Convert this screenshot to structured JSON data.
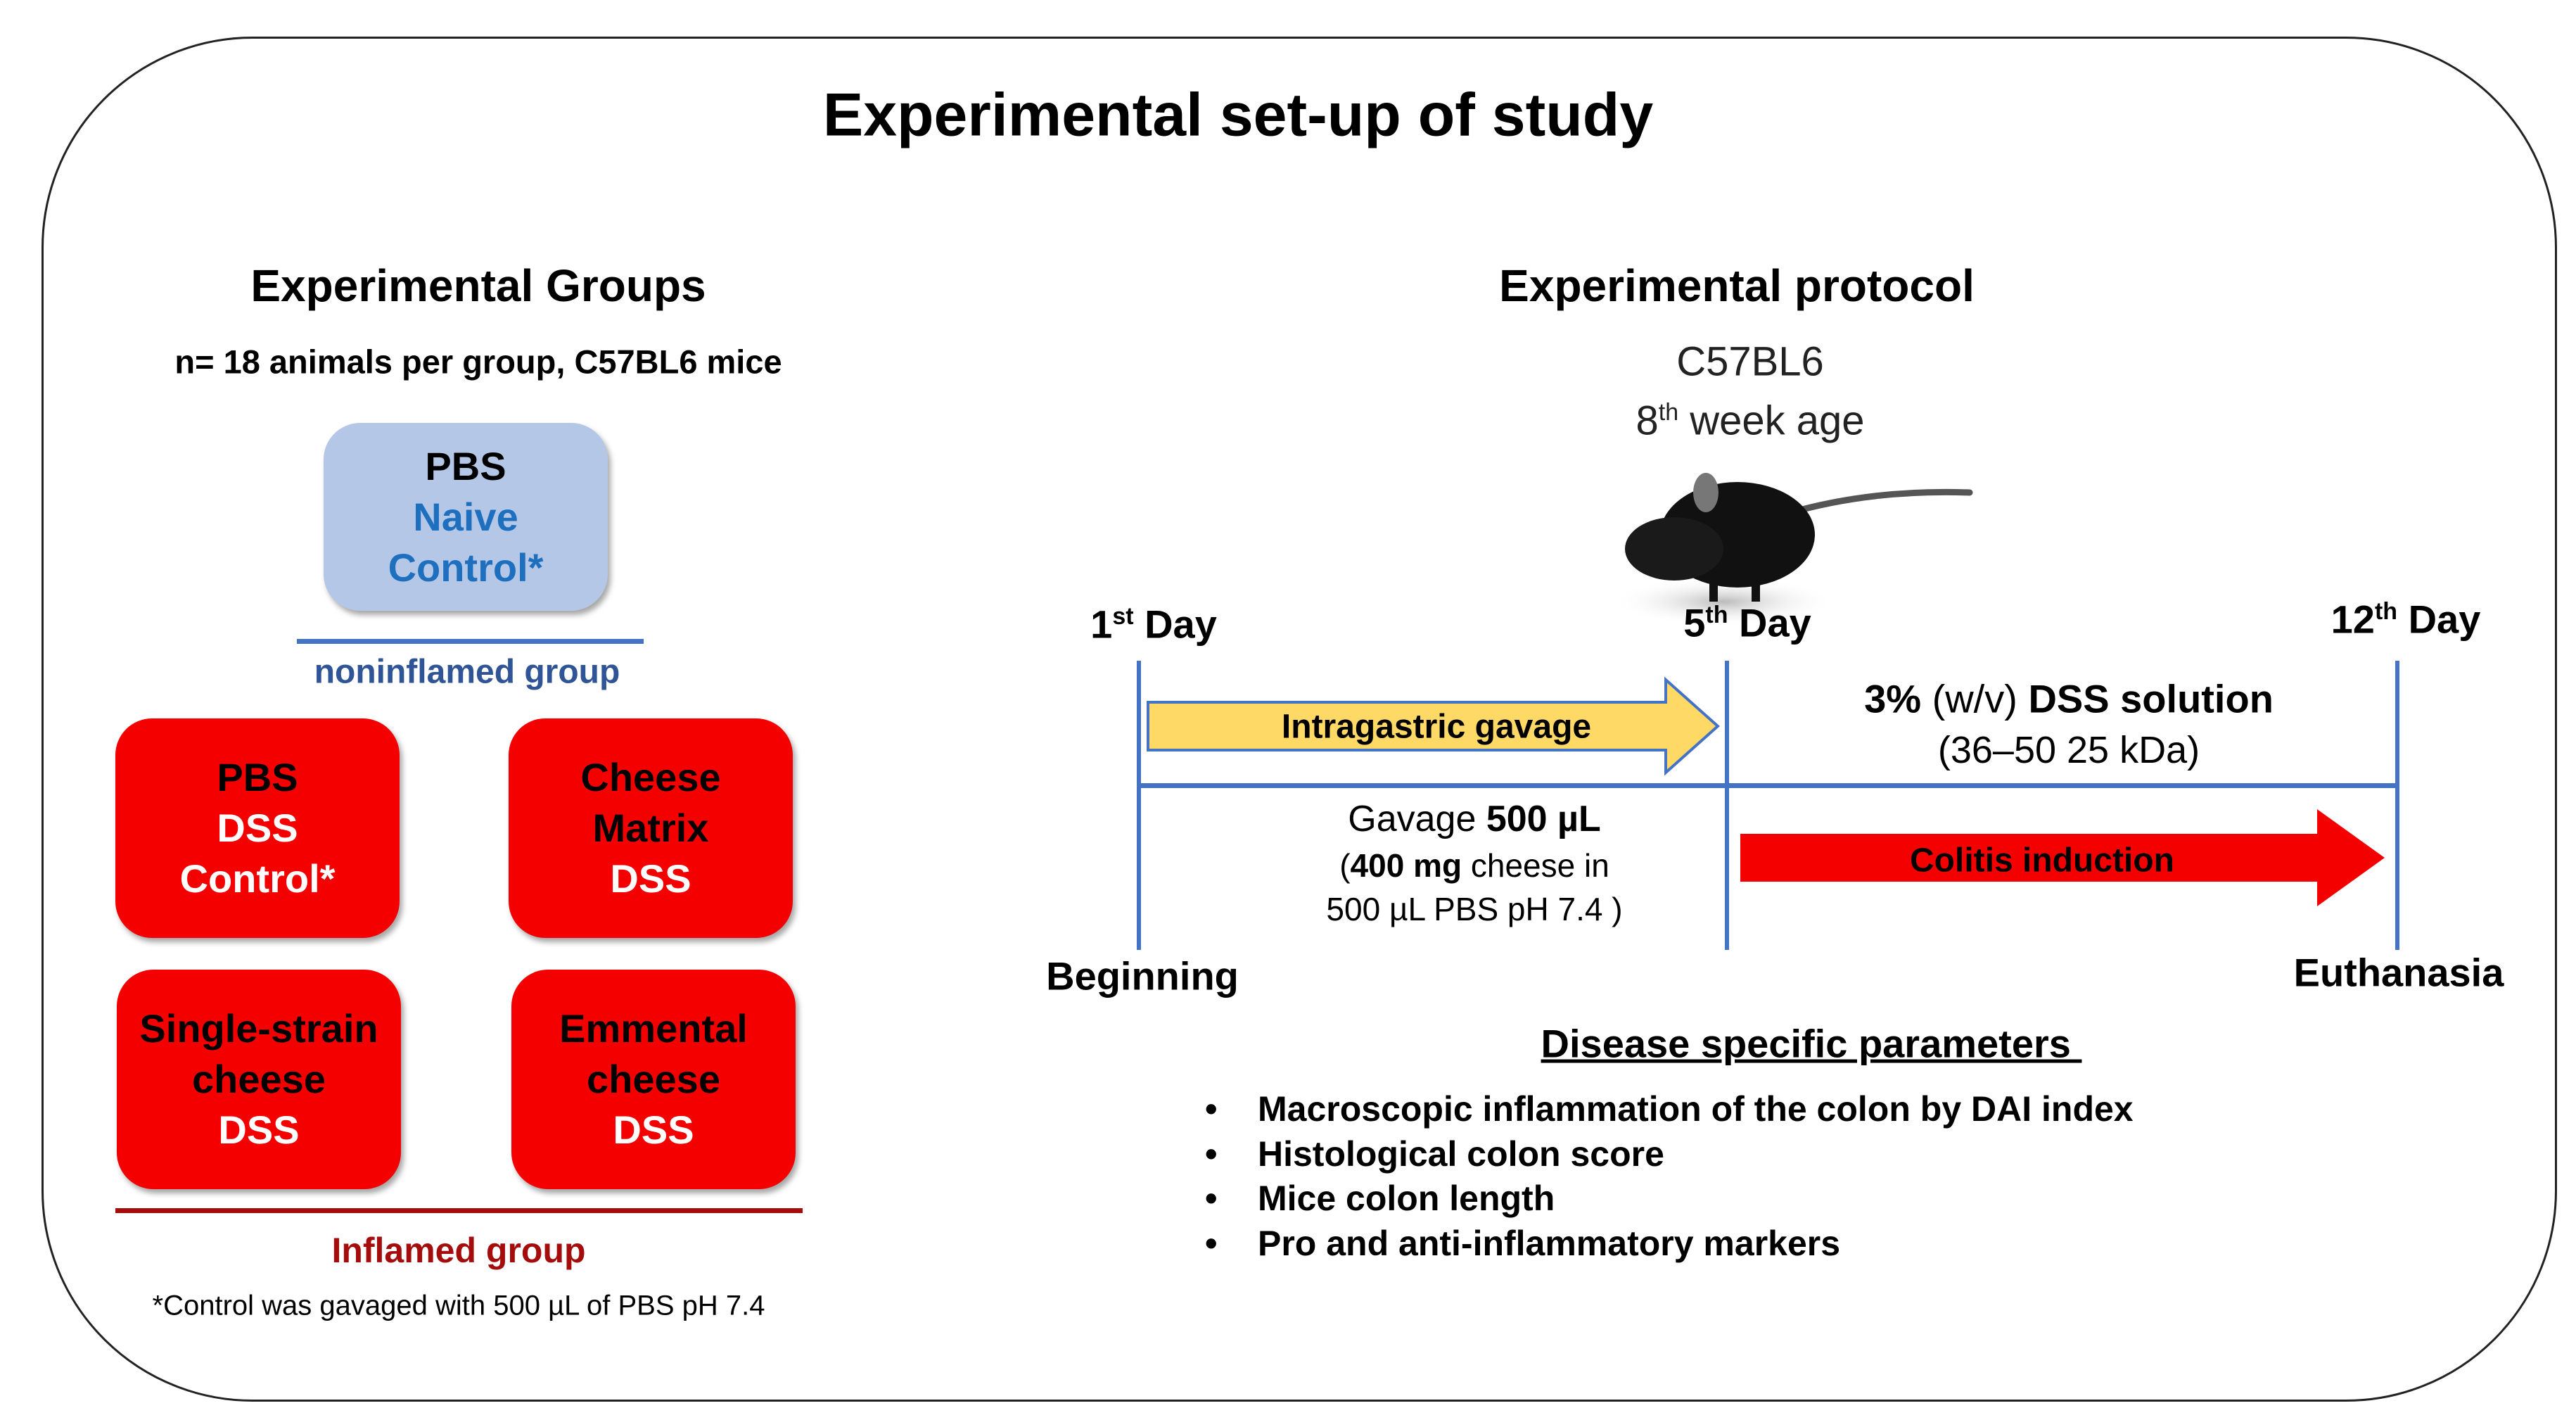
{
  "title": "Experimental set-up of study",
  "groups": {
    "heading": "Experimental Groups",
    "subtitle": "n= 18 animals per group, C57BL6 mice",
    "naive": {
      "line1": "PBS",
      "line2": "Naive",
      "line3": "Control*"
    },
    "noninflamed_label": "noninflamed group",
    "inflamed": [
      {
        "line1": "PBS",
        "line2": "DSS",
        "line3": "Control*"
      },
      {
        "line1": "Cheese",
        "line2": "Matrix",
        "line3": "DSS"
      },
      {
        "line1": "Single-strain",
        "line2": "cheese",
        "line3": "DSS"
      },
      {
        "line1": "Emmental",
        "line2": "cheese",
        "line3": "DSS"
      }
    ],
    "inflamed_label": "Inflamed group",
    "footnote": "*Control was gavaged with 500 µL of  PBS pH 7.4"
  },
  "protocol": {
    "heading": "Experimental protocol",
    "strain": "C57BL6",
    "age_num": "8",
    "age_sup": "th",
    "age_text": " week age",
    "days": [
      {
        "num": "1",
        "sup": "st",
        "text": " Day"
      },
      {
        "num": "5",
        "sup": "th",
        "text": " Day"
      },
      {
        "num": "12",
        "sup": "th",
        "text": " Day"
      }
    ],
    "gavage_arrow": "Intragastric gavage",
    "dss_pct": "3%",
    "dss_wv": " (w/v) ",
    "dss_bold": "DSS solution",
    "dss_kda": "(36–50 25 kDa)",
    "gavage_text": "Gavage ",
    "gavage_vol": "500 µL",
    "gavage_paren_open": "(",
    "gavage_mg": "400 mg",
    "gavage_rest": " cheese in",
    "gavage_line3": "500 µL PBS pH 7.4 )",
    "colitis_arrow": "Colitis induction",
    "start_label": "Beginning",
    "end_label": "Euthanasia"
  },
  "parameters": {
    "heading": "Disease specific parameters ",
    "bullet": "•",
    "items": [
      "Macroscopic inflammation of the colon by DAI index",
      "Histological colon score",
      "Mice colon length",
      "Pro and anti-inflammatory markers"
    ]
  },
  "colors": {
    "naive_box": "#b4c7e7",
    "dss_box": "#f40000",
    "timeline": "#4472c4",
    "gavage_arrow": "#ffd966",
    "inflamed_line": "#a50d0d"
  }
}
